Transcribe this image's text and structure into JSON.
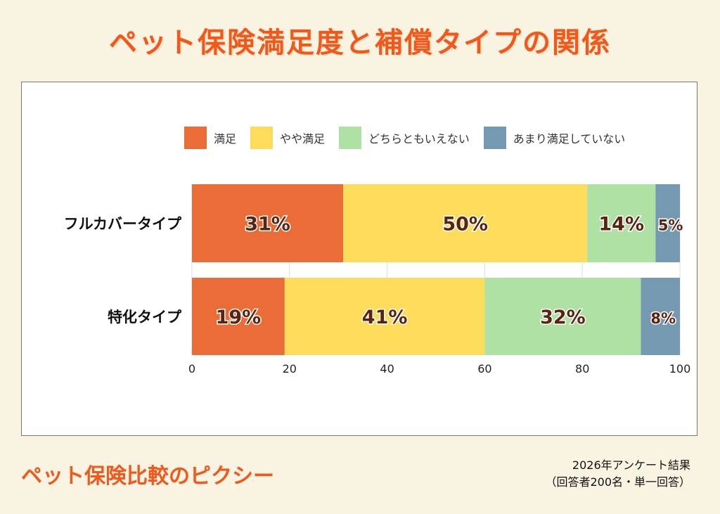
{
  "title": "ペット保険満足度と補償タイプの関係",
  "chart_data": {
    "type": "bar",
    "orientation": "horizontal",
    "stacked": true,
    "categories": [
      "フルカバータイプ",
      "特化タイプ"
    ],
    "series": [
      {
        "name": "満足",
        "values": [
          31,
          19
        ],
        "color": "#ea6c36"
      },
      {
        "name": "やや満足",
        "values": [
          50,
          41
        ],
        "color": "#fddc5c"
      },
      {
        "name": "どちらともいえない",
        "values": [
          14,
          32
        ],
        "color": "#afe0a4"
      },
      {
        "name": "あまり満足していない",
        "values": [
          5,
          8
        ],
        "color": "#7599b0"
      }
    ],
    "data_labels": [
      [
        "31%",
        "50%",
        "14%",
        "5%"
      ],
      [
        "19%",
        "41%",
        "32%",
        "8%"
      ]
    ],
    "xlim": [
      0,
      100
    ],
    "xticks": [
      "0",
      "20",
      "40",
      "60",
      "80",
      "100"
    ],
    "legend_position": "top",
    "grid": true
  },
  "footer": {
    "brand": "ペット保険比較のピクシー",
    "note_line1": "2026年アンケート結果",
    "note_line2": "（回答者200名・単一回答）"
  }
}
